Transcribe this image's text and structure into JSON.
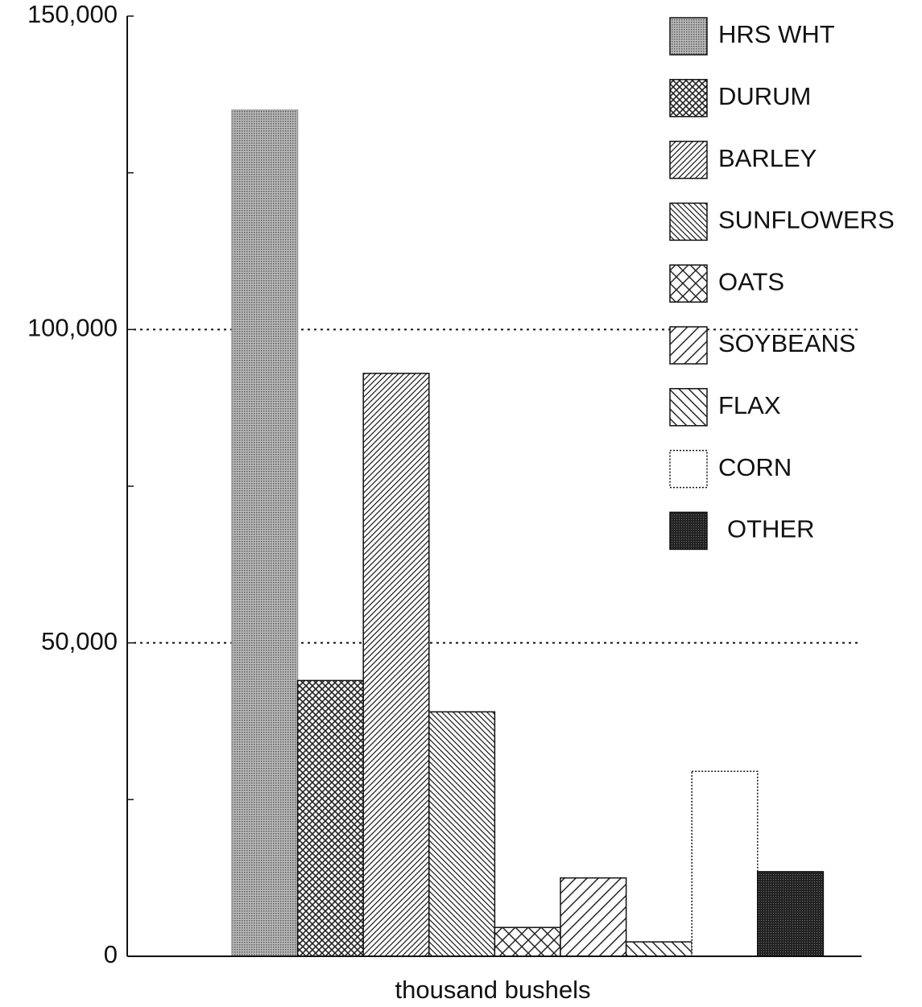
{
  "chart_data": {
    "type": "bar",
    "categories": [
      "HRS WHT",
      "DURUM",
      "BARLEY",
      "SUNFLOWERS",
      "OATS",
      "SOYBEANS",
      "FLAX",
      "CORN",
      "OTHER"
    ],
    "values": [
      135000,
      44000,
      93000,
      39000,
      4600,
      12500,
      2300,
      29500,
      13500
    ],
    "x_label": "thousand bushels",
    "ylim": [
      0,
      150000
    ],
    "yticks": [
      0,
      {
        "value": 50000,
        "label": "50,000"
      },
      {
        "value": 100000,
        "label": "100,000"
      },
      {
        "value": 150000,
        "label": "150,000"
      }
    ],
    "yminor_ticks": [
      25000,
      75000,
      125000
    ],
    "grid": true,
    "legend": "upper right"
  }
}
